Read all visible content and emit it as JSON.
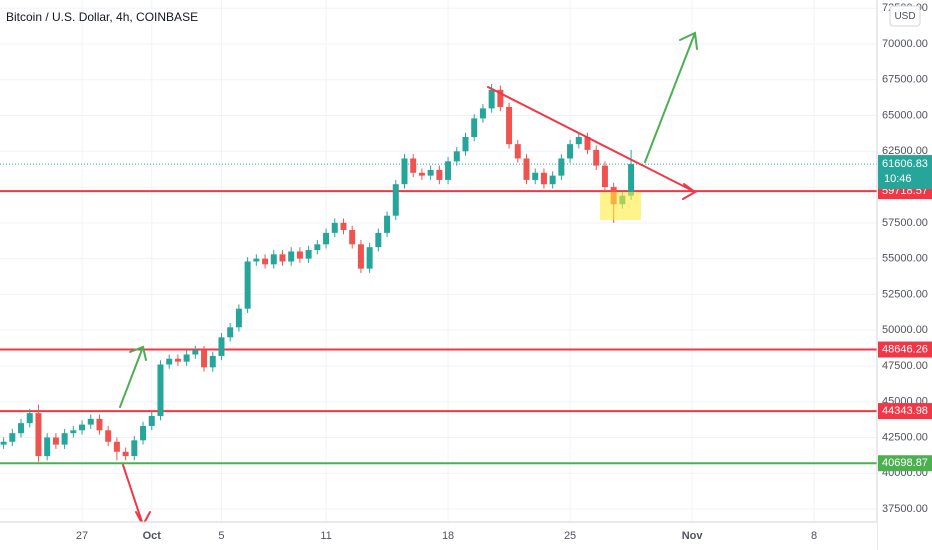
{
  "chart_data": {
    "type": "candlestick",
    "title": "Bitcoin / U.S. Dollar, 4h, COINBASE",
    "currency": "USD",
    "categories": [
      null,
      null,
      null,
      null,
      null,
      null,
      null,
      null,
      null,
      "27",
      null,
      null,
      null,
      null,
      null,
      null,
      null,
      "Oct",
      null,
      null,
      null,
      null,
      null,
      null,
      null,
      "5",
      null,
      null,
      null,
      null,
      null,
      null,
      null,
      null,
      null,
      null,
      null,
      "11",
      null,
      null,
      null,
      null,
      null,
      null,
      null,
      null,
      null,
      null,
      null,
      null,
      null,
      "18",
      null,
      null,
      null,
      null,
      null,
      null,
      null,
      null,
      null,
      null,
      null,
      null,
      null,
      "25",
      null,
      null,
      null,
      null,
      null,
      null,
      null,
      null,
      null,
      null,
      null,
      null,
      null,
      "Nov",
      null,
      null,
      null,
      null,
      null,
      null,
      null,
      null,
      null,
      null,
      null,
      null,
      null,
      "8",
      null,
      null
    ],
    "open": [
      42000,
      42200,
      42800,
      43500,
      44200,
      41200,
      42500,
      42000,
      42800,
      43000,
      43400,
      43800,
      43000,
      42200,
      41500,
      41200,
      42300,
      43300,
      44000,
      47600,
      48000,
      47800,
      48300,
      48600,
      47400,
      48200,
      49500,
      50200,
      51500,
      54800,
      55000,
      54600,
      55300,
      54800,
      55500,
      55000,
      55600,
      56000,
      56800,
      57500,
      57000,
      56000,
      54300,
      55800,
      56800,
      58000,
      60200,
      62000,
      61000,
      60800,
      61200,
      60500,
      61800,
      62500,
      63500,
      64800,
      65500,
      66800,
      65600,
      63000,
      62000,
      60500,
      61000,
      60200,
      60800,
      62000,
      63000,
      63500,
      62600,
      61500,
      60000,
      58800,
      59400,
      null,
      null,
      null,
      null,
      null,
      null,
      null,
      null,
      null,
      null,
      null,
      null,
      null,
      null,
      null,
      null,
      null,
      null,
      null,
      null,
      null,
      null,
      null
    ],
    "high": [
      42500,
      43100,
      43800,
      44500,
      44800,
      42800,
      42800,
      43100,
      43300,
      43700,
      44100,
      44100,
      43300,
      42500,
      41800,
      42600,
      43600,
      44300,
      47900,
      48300,
      48300,
      48600,
      48900,
      48900,
      48500,
      49800,
      50500,
      51800,
      55100,
      55300,
      55300,
      55600,
      55600,
      55800,
      55800,
      55900,
      56300,
      57100,
      57800,
      57800,
      57300,
      56300,
      56100,
      57100,
      58300,
      60500,
      62300,
      62300,
      61300,
      61500,
      61500,
      62100,
      62800,
      63800,
      65100,
      65800,
      67200,
      67100,
      65900,
      63300,
      62300,
      61300,
      61300,
      61100,
      62300,
      63300,
      63800,
      63800,
      62900,
      61800,
      60300,
      59700,
      62600,
      null,
      null,
      null,
      null,
      null,
      null,
      null,
      null,
      null,
      null,
      null,
      null,
      null,
      null,
      null,
      null,
      null,
      null,
      null,
      null,
      null,
      null,
      null
    ],
    "low": [
      41700,
      41900,
      42500,
      43200,
      40800,
      40900,
      41700,
      41700,
      42500,
      42700,
      43100,
      42700,
      41900,
      40900,
      40900,
      40900,
      42000,
      43000,
      43700,
      47300,
      47500,
      47500,
      48000,
      47100,
      47100,
      47900,
      49200,
      49900,
      51200,
      54500,
      54300,
      54300,
      54500,
      54500,
      54700,
      54700,
      55300,
      55700,
      56500,
      56700,
      55700,
      54000,
      54000,
      55500,
      56500,
      57700,
      59900,
      60700,
      60500,
      60500,
      60200,
      60200,
      61500,
      62200,
      63200,
      64500,
      65200,
      65300,
      62700,
      61700,
      60200,
      60200,
      59900,
      59900,
      60500,
      61700,
      62700,
      62300,
      61200,
      59700,
      57500,
      58500,
      59100,
      null,
      null,
      null,
      null,
      null,
      null,
      null,
      null,
      null,
      null,
      null,
      null,
      null,
      null,
      null,
      null,
      null,
      null,
      null,
      null,
      null,
      null,
      null
    ],
    "close": [
      42200,
      42800,
      43500,
      44200,
      41200,
      42500,
      42000,
      42800,
      43000,
      43400,
      43800,
      43000,
      42200,
      41500,
      41200,
      42300,
      43300,
      44000,
      47600,
      48000,
      47800,
      48300,
      48600,
      47400,
      48200,
      49500,
      50200,
      51500,
      54800,
      55000,
      54600,
      55300,
      54800,
      55500,
      55000,
      55600,
      56000,
      56800,
      57500,
      57000,
      56000,
      54300,
      55800,
      56800,
      58000,
      60200,
      62000,
      61000,
      60800,
      61200,
      60500,
      61800,
      62500,
      63500,
      64800,
      65500,
      66800,
      65600,
      63000,
      62000,
      60500,
      61000,
      60200,
      60800,
      62000,
      63000,
      63500,
      62600,
      61500,
      60000,
      58800,
      59400,
      61606.83,
      null,
      null,
      null,
      null,
      null,
      null,
      null,
      null,
      null,
      null,
      null,
      null,
      null,
      null,
      null,
      null,
      null,
      null,
      null,
      null,
      null,
      null,
      null
    ],
    "up_color": "#26a69a",
    "down_color": "#ef5350",
    "ylim": [
      36592,
      73075
    ],
    "yticks": [
      {
        "value": 37500,
        "label": "37500.00"
      },
      {
        "value": 40000,
        "label": "40000.00"
      },
      {
        "value": 42500,
        "label": "42500.00"
      },
      {
        "value": 45000,
        "label": "45000.00"
      },
      {
        "value": 47500,
        "label": "47500.00"
      },
      {
        "value": 50000,
        "label": "50000.00"
      },
      {
        "value": 52500,
        "label": "52500.00"
      },
      {
        "value": 55000,
        "label": "55000.00"
      },
      {
        "value": 57500,
        "label": "57500.00"
      },
      {
        "value": 60000,
        "label": "60000.00"
      },
      {
        "value": 62500,
        "label": "62500.00"
      },
      {
        "value": 65000,
        "label": "65000.00"
      },
      {
        "value": 67500,
        "label": "67500.00"
      },
      {
        "value": 70000,
        "label": "70000.00"
      },
      {
        "value": 72500,
        "label": "72500.00"
      }
    ],
    "grid": true,
    "levels": [
      {
        "value": 59718.57,
        "color": "#f23645"
      },
      {
        "value": 48646.26,
        "color": "#f23645"
      },
      {
        "value": 44343.98,
        "color": "#f23645"
      },
      {
        "value": 40698.87,
        "color": "#4caf50"
      }
    ],
    "last_price": {
      "value": 61606.83,
      "color": "#26a69a",
      "countdown": "10:46"
    }
  }
}
